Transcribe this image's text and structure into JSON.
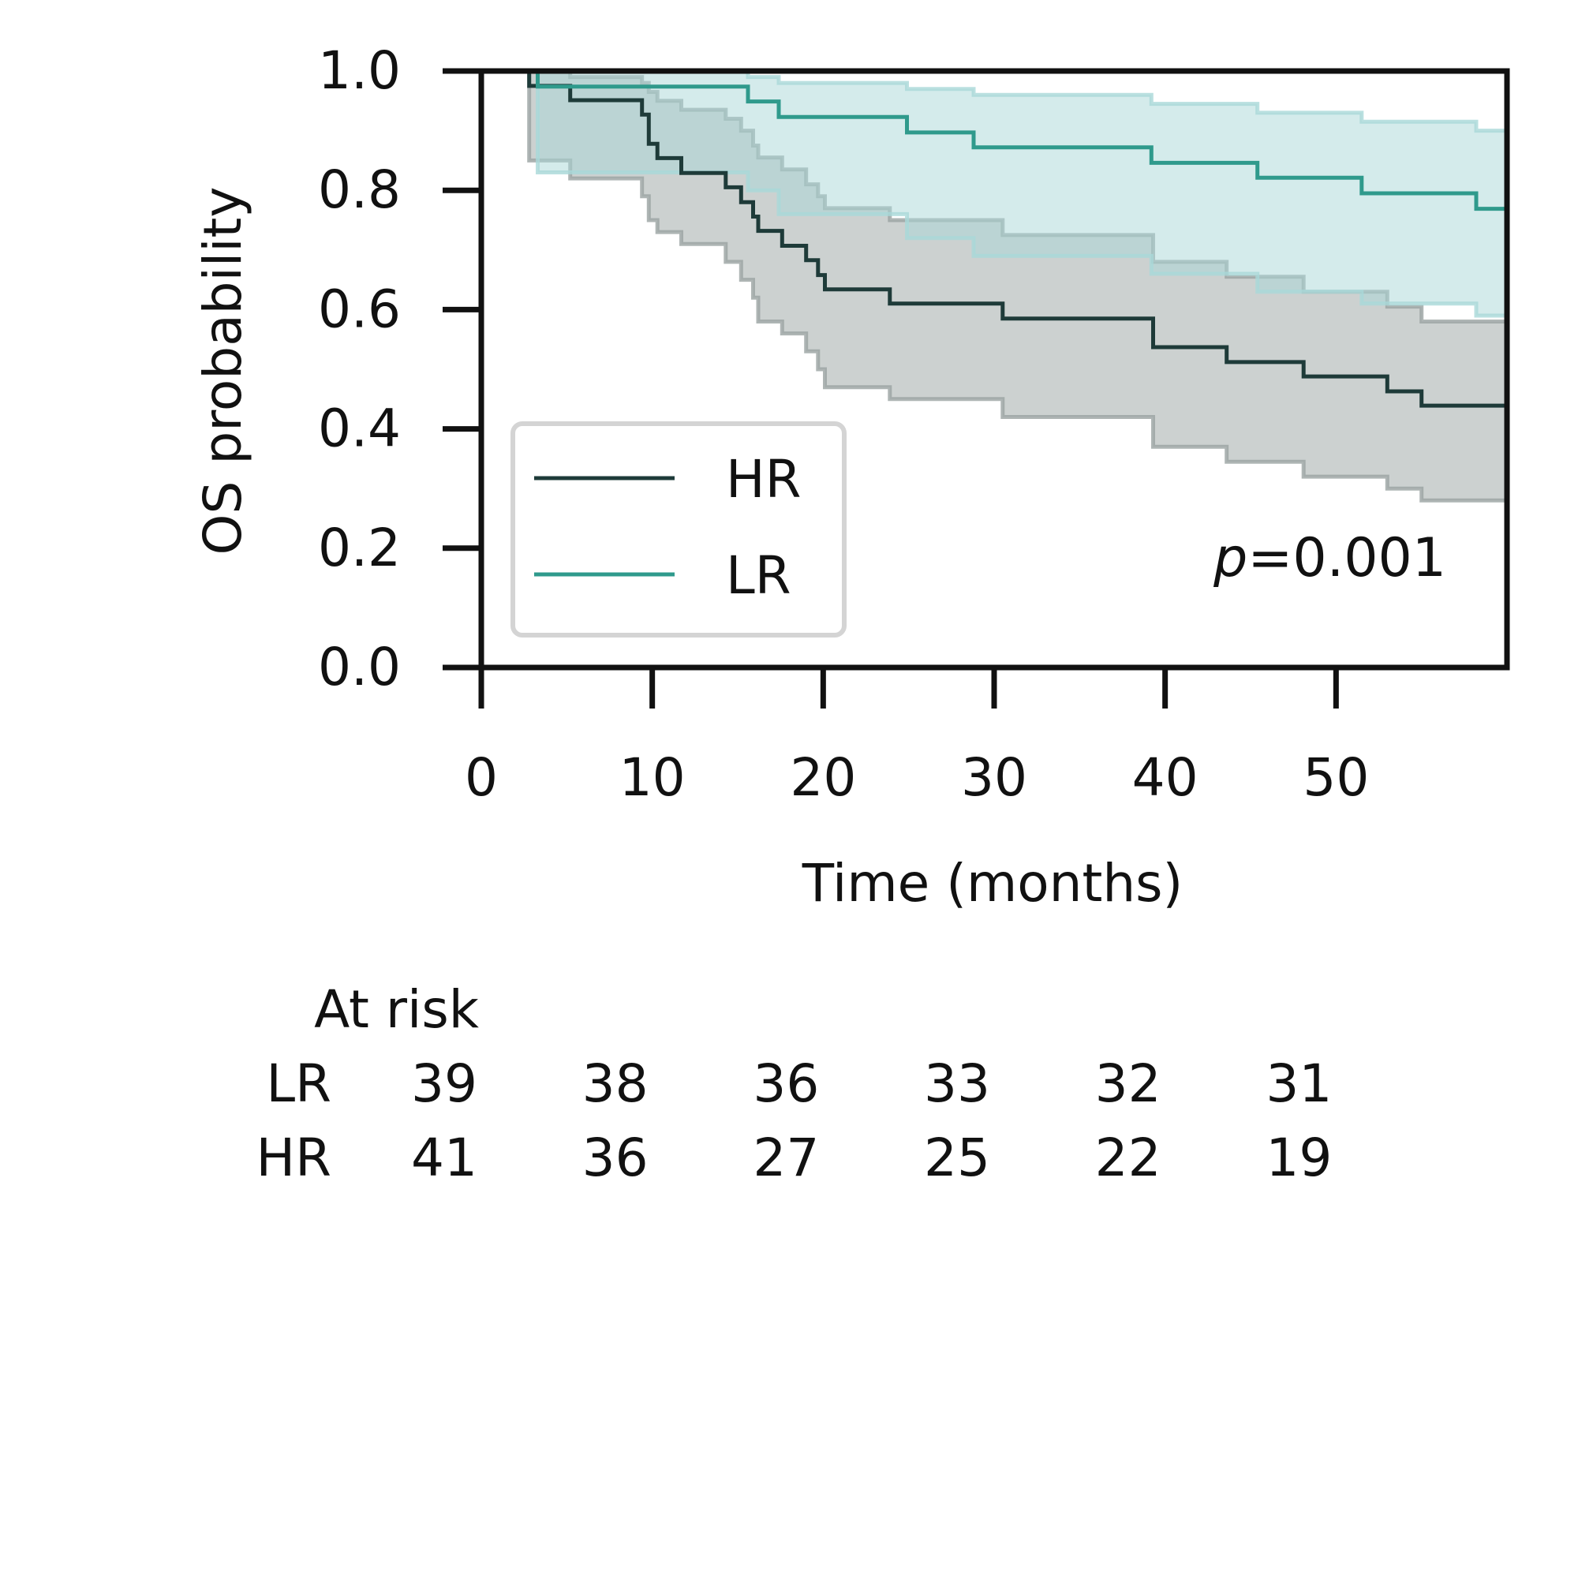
{
  "chart_data": {
    "type": "line",
    "subtype": "kaplan-meier",
    "ylabel": "OS probability",
    "xlabel": "Time (months)",
    "xlim": [
      0,
      60
    ],
    "ylim": [
      0,
      1.0
    ],
    "xticks": [
      0,
      10,
      20,
      30,
      40,
      50
    ],
    "yticks": [
      0.0,
      0.2,
      0.4,
      0.6,
      0.8,
      1.0
    ],
    "xtick_labels": [
      "0",
      "10",
      "20",
      "30",
      "40",
      "50"
    ],
    "ytick_labels": [
      "0.0",
      "0.2",
      "0.4",
      "0.6",
      "0.8",
      "1.0"
    ],
    "annotation_italic": "p",
    "annotation_value": "=0.001",
    "legend_position": "lower-left",
    "series": [
      {
        "name": "HR",
        "color": "#1e3b39",
        "band_color": "#9aa3a1",
        "steps": [
          [
            0,
            1.0
          ],
          [
            2.8,
            0.975
          ],
          [
            5.2,
            0.951
          ],
          [
            9.4,
            0.927
          ],
          [
            9.8,
            0.878
          ],
          [
            10.3,
            0.854
          ],
          [
            11.7,
            0.829
          ],
          [
            14.3,
            0.805
          ],
          [
            15.2,
            0.78
          ],
          [
            15.9,
            0.756
          ],
          [
            16.2,
            0.732
          ],
          [
            17.6,
            0.707
          ],
          [
            19.0,
            0.683
          ],
          [
            19.7,
            0.658
          ],
          [
            20.1,
            0.634
          ],
          [
            23.9,
            0.61
          ],
          [
            30.5,
            0.585
          ],
          [
            39.3,
            0.537
          ],
          [
            43.6,
            0.512
          ],
          [
            48.1,
            0.488
          ],
          [
            53.0,
            0.463
          ],
          [
            55.0,
            0.439
          ],
          [
            60,
            0.439
          ]
        ],
        "upper": [
          [
            0,
            1.0
          ],
          [
            2.8,
            1.0
          ],
          [
            5.2,
            0.99
          ],
          [
            9.4,
            0.98
          ],
          [
            9.8,
            0.965
          ],
          [
            10.3,
            0.95
          ],
          [
            11.7,
            0.935
          ],
          [
            14.3,
            0.92
          ],
          [
            15.2,
            0.9
          ],
          [
            15.9,
            0.875
          ],
          [
            16.2,
            0.855
          ],
          [
            17.6,
            0.835
          ],
          [
            19.0,
            0.81
          ],
          [
            19.7,
            0.79
          ],
          [
            20.1,
            0.77
          ],
          [
            23.9,
            0.75
          ],
          [
            30.5,
            0.725
          ],
          [
            39.3,
            0.68
          ],
          [
            43.6,
            0.655
          ],
          [
            48.1,
            0.63
          ],
          [
            53.0,
            0.605
          ],
          [
            55.0,
            0.58
          ],
          [
            60,
            0.58
          ]
        ],
        "lower": [
          [
            0,
            1.0
          ],
          [
            2.8,
            0.85
          ],
          [
            5.2,
            0.82
          ],
          [
            9.4,
            0.79
          ],
          [
            9.8,
            0.75
          ],
          [
            10.3,
            0.73
          ],
          [
            11.7,
            0.71
          ],
          [
            14.3,
            0.68
          ],
          [
            15.2,
            0.65
          ],
          [
            15.9,
            0.62
          ],
          [
            16.2,
            0.58
          ],
          [
            17.6,
            0.56
          ],
          [
            19.0,
            0.53
          ],
          [
            19.7,
            0.5
          ],
          [
            20.1,
            0.47
          ],
          [
            23.9,
            0.45
          ],
          [
            30.5,
            0.42
          ],
          [
            39.3,
            0.37
          ],
          [
            43.6,
            0.345
          ],
          [
            48.1,
            0.32
          ],
          [
            53.0,
            0.3
          ],
          [
            55.0,
            0.28
          ],
          [
            60,
            0.28
          ]
        ]
      },
      {
        "name": "LR",
        "color": "#2f9a8c",
        "band_color": "#a9d8d8",
        "steps": [
          [
            0,
            1.0
          ],
          [
            3.3,
            0.974
          ],
          [
            15.6,
            0.949
          ],
          [
            17.4,
            0.923
          ],
          [
            24.9,
            0.897
          ],
          [
            28.8,
            0.872
          ],
          [
            39.2,
            0.846
          ],
          [
            45.4,
            0.821
          ],
          [
            51.5,
            0.795
          ],
          [
            58.2,
            0.769
          ],
          [
            60,
            0.769
          ]
        ],
        "upper": [
          [
            0,
            1.0
          ],
          [
            3.3,
            1.0
          ],
          [
            15.6,
            0.99
          ],
          [
            17.4,
            0.98
          ],
          [
            24.9,
            0.97
          ],
          [
            28.8,
            0.96
          ],
          [
            39.2,
            0.945
          ],
          [
            45.4,
            0.93
          ],
          [
            51.5,
            0.915
          ],
          [
            58.2,
            0.9
          ],
          [
            60,
            0.9
          ]
        ],
        "lower": [
          [
            0,
            1.0
          ],
          [
            3.3,
            0.83
          ],
          [
            15.6,
            0.8
          ],
          [
            17.4,
            0.76
          ],
          [
            24.9,
            0.72
          ],
          [
            28.8,
            0.69
          ],
          [
            39.2,
            0.66
          ],
          [
            45.4,
            0.63
          ],
          [
            51.5,
            0.61
          ],
          [
            58.2,
            0.59
          ],
          [
            60,
            0.59
          ]
        ]
      }
    ],
    "at_risk": {
      "title": "At risk",
      "times": [
        0,
        10,
        20,
        30,
        40,
        50
      ],
      "rows": [
        {
          "label": "LR",
          "counts": [
            "39",
            "38",
            "36",
            "33",
            "32",
            "31"
          ]
        },
        {
          "label": "HR",
          "counts": [
            "41",
            "36",
            "27",
            "25",
            "22",
            "19"
          ]
        }
      ]
    }
  }
}
